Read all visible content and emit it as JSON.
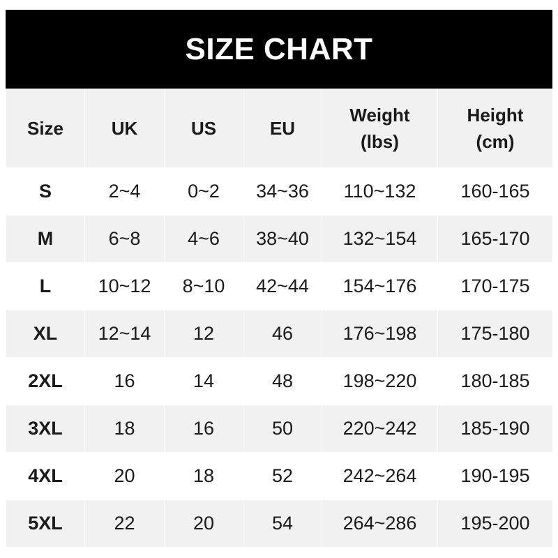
{
  "title": "SIZE CHART",
  "headers": [
    "Size",
    "UK",
    "US",
    "EU",
    "Weight\n(lbs)",
    "Height\n(cm)"
  ],
  "rows": [
    [
      "S",
      "2~4",
      "0~2",
      "34~36",
      "110~132",
      "160-165"
    ],
    [
      "M",
      "6~8",
      "4~6",
      "38~40",
      "132~154",
      "165-170"
    ],
    [
      "L",
      "10~12",
      "8~10",
      "42~44",
      "154~176",
      "170-175"
    ],
    [
      "XL",
      "12~14",
      "12",
      "46",
      "176~198",
      "175-180"
    ],
    [
      "2XL",
      "16",
      "14",
      "48",
      "198~220",
      "180-185"
    ],
    [
      "3XL",
      "18",
      "16",
      "50",
      "220~242",
      "185-190"
    ],
    [
      "4XL",
      "20",
      "18",
      "52",
      "242~264",
      "190-195"
    ],
    [
      "5XL",
      "22",
      "20",
      "54",
      "264~286",
      "195-200"
    ]
  ],
  "colors": {
    "title_bg": "#000000",
    "stripe": "#f1f1f1"
  }
}
